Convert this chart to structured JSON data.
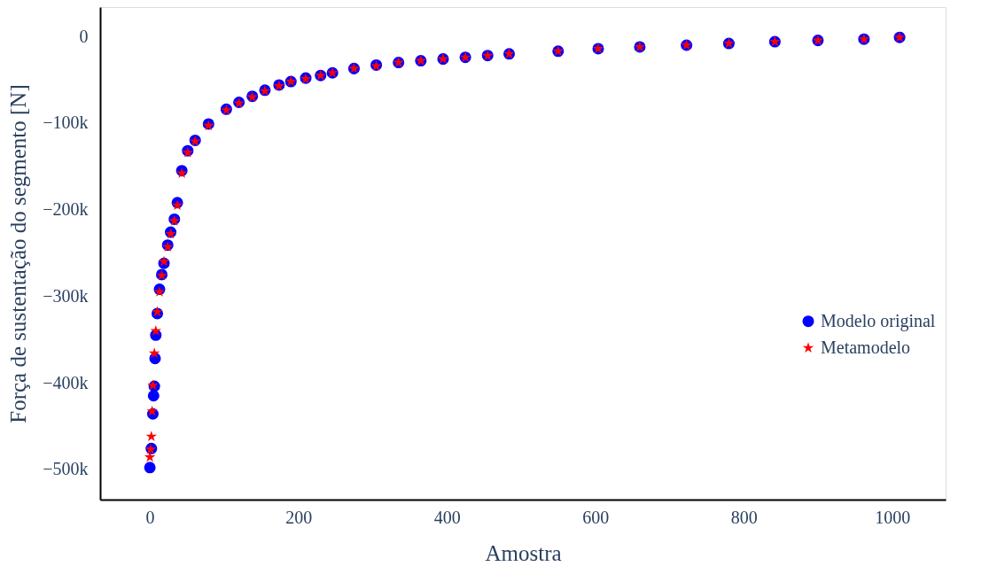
{
  "chart_data": {
    "type": "scatter",
    "xlabel": "Amostra",
    "ylabel": "Força de sustentação do segmento [N]",
    "xlim": [
      -67,
      1072
    ],
    "ylim": [
      -535000,
      34000
    ],
    "xticks": [
      0,
      200,
      400,
      600,
      800,
      {
        "value": 1000,
        "label": "1000"
      }
    ],
    "yticks": [
      {
        "value": 0,
        "label": "0"
      },
      {
        "value": -100000,
        "label": "−100k"
      },
      {
        "value": -200000,
        "label": "−200k"
      },
      {
        "value": -300000,
        "label": "−300k"
      },
      {
        "value": -400000,
        "label": "−400k"
      },
      {
        "value": -500000,
        "label": "−500k"
      }
    ],
    "grid": false,
    "legend": "right",
    "series": [
      {
        "name": "Modelo original",
        "color": "#0000ff",
        "marker": "circle",
        "x": [
          0,
          2,
          4,
          5,
          6,
          7,
          8,
          10,
          13,
          16,
          19,
          24,
          28,
          33,
          37,
          43,
          51,
          61,
          79,
          103,
          120,
          138,
          155,
          174,
          190,
          210,
          230,
          246,
          275,
          305,
          335,
          365,
          395,
          425,
          455,
          484,
          550,
          604,
          660,
          723,
          780,
          842,
          900,
          962,
          1010
        ],
        "values": [
          -498000,
          -476000,
          -436000,
          -415000,
          -404000,
          -372000,
          -345000,
          -320000,
          -292000,
          -275000,
          -262000,
          -241000,
          -226000,
          -211000,
          -192000,
          -155000,
          -132000,
          -120000,
          -101000,
          -84000,
          -76000,
          -69000,
          -62000,
          -56000,
          -52000,
          -48000,
          -45000,
          -42000,
          -37000,
          -33000,
          -30000,
          -28000,
          -26000,
          -24000,
          -22000,
          -20000,
          -17000,
          -14000,
          -12000,
          -10000,
          -8000,
          -6000,
          -4500,
          -3000,
          -1000
        ]
      },
      {
        "name": "Metamodelo",
        "color": "#ff0000",
        "marker": "star",
        "x": [
          0,
          1,
          2,
          3,
          4,
          6,
          8,
          10,
          13,
          16,
          19,
          24,
          28,
          33,
          37,
          43,
          51,
          61,
          79,
          103,
          120,
          138,
          155,
          174,
          190,
          210,
          230,
          246,
          275,
          305,
          335,
          365,
          395,
          425,
          455,
          484,
          550,
          604,
          660,
          723,
          780,
          842,
          900,
          962,
          1010
        ],
        "values": [
          -486000,
          -477000,
          -462000,
          -433000,
          -403000,
          -366000,
          -340000,
          -318000,
          -295000,
          -276000,
          -260000,
          -243000,
          -228000,
          -213000,
          -195000,
          -158000,
          -134000,
          -121000,
          -103000,
          -85000,
          -77000,
          -70000,
          -63000,
          -57000,
          -52000,
          -49000,
          -45000,
          -42000,
          -37000,
          -34000,
          -30000,
          -28000,
          -26000,
          -24000,
          -22000,
          -20000,
          -17000,
          -14000,
          -12000,
          -10000,
          -8000,
          -6000,
          -4500,
          -3000,
          -1000
        ]
      }
    ]
  }
}
